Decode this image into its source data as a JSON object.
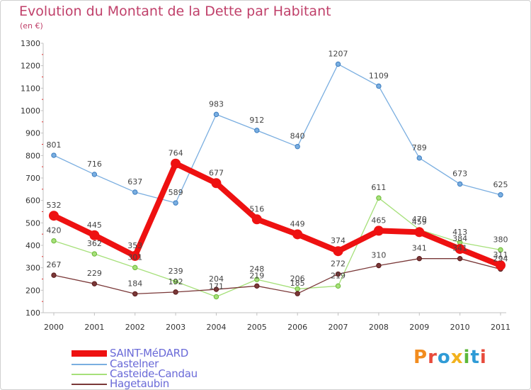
{
  "title": "Evolution du Montant de la Dette par Habitant",
  "subtitle": "(en €)",
  "logo": {
    "text": "Proxiti",
    "letters": [
      {
        "ch": "P",
        "color": "#f28c1e"
      },
      {
        "ch": "r",
        "color": "#e84b3c"
      },
      {
        "ch": "o",
        "color": "#2f9bd6"
      },
      {
        "ch": "x",
        "color": "#f2b21e"
      },
      {
        "ch": "i",
        "color": "#5cb83a"
      },
      {
        "ch": "t",
        "color": "#2f9bd6"
      },
      {
        "ch": "i",
        "color": "#e84b3c"
      }
    ]
  },
  "chart_data": {
    "type": "line",
    "title": "Evolution du Montant de la Dette par Habitant",
    "ylabel": "(en €)",
    "xlabel": "",
    "x": [
      "2000",
      "2001",
      "2002",
      "2003",
      "2004",
      "2005",
      "2006",
      "2007",
      "2008",
      "2009",
      "2010",
      "2011"
    ],
    "ylim": [
      100,
      1300
    ],
    "yticks": [
      100,
      200,
      300,
      400,
      500,
      600,
      700,
      800,
      900,
      1000,
      1100,
      1200,
      1300
    ],
    "grid": false,
    "legend": "bottom-left",
    "series": [
      {
        "name": "SAINT-MéDARD",
        "color": "#ee1111",
        "emphasis": true,
        "values": [
          532,
          445,
          353,
          764,
          677,
          516,
          449,
          374,
          465,
          459,
          384,
          311
        ]
      },
      {
        "name": "Castelner",
        "color": "#7aaee0",
        "emphasis": false,
        "values": [
          801,
          716,
          637,
          589,
          983,
          912,
          840,
          1207,
          1109,
          789,
          673,
          625
        ]
      },
      {
        "name": "Casteide-Candau",
        "color": "#a6e07a",
        "emphasis": false,
        "values": [
          420,
          362,
          301,
          239,
          171,
          248,
          206,
          219,
          611,
          470,
          413,
          380
        ]
      },
      {
        "name": "Hagetaubin",
        "color": "#7a3838",
        "emphasis": false,
        "values": [
          267,
          229,
          184,
          192,
          204,
          219,
          185,
          272,
          310,
          341,
          341,
          294
        ]
      }
    ]
  }
}
